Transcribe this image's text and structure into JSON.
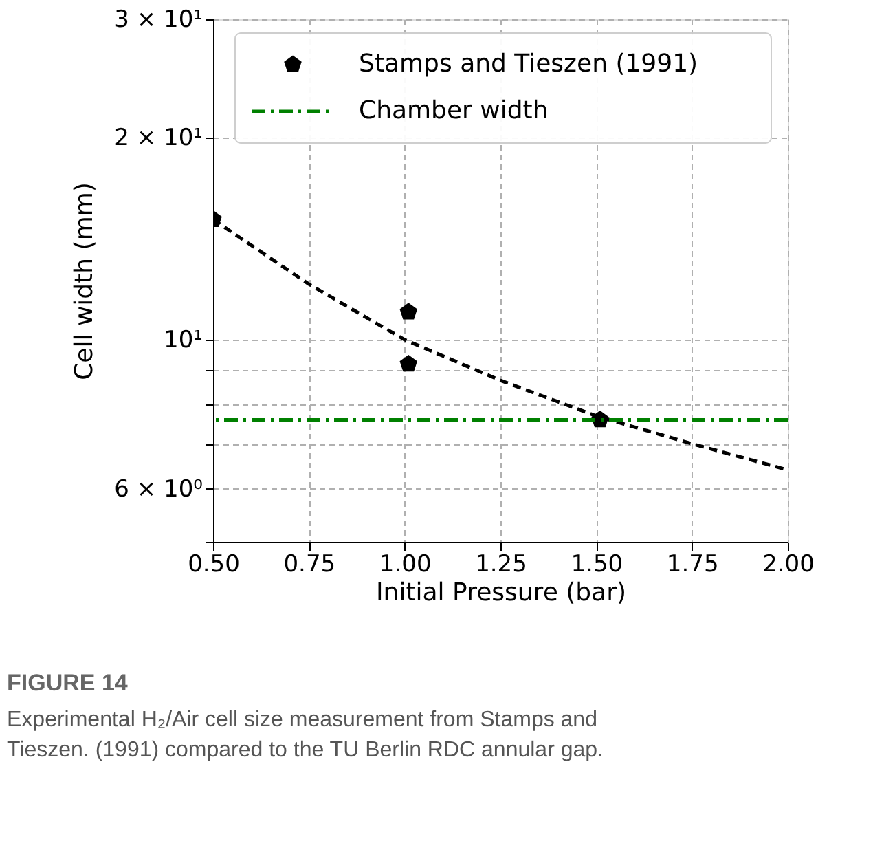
{
  "chart_data": {
    "type": "scatter",
    "xlabel": "Initial Pressure (bar)",
    "ylabel": "Cell width (mm)",
    "series": [
      {
        "name": "Stamps and Tieszen (1991)",
        "color": "#000000",
        "x": [
          0.5,
          1.01,
          1.01,
          1.51
        ],
        "values": [
          15.1,
          11.0,
          9.2,
          7.6
        ]
      },
      {
        "type": "line",
        "color": "#000000",
        "line_style": "dashed",
        "x": [
          0.5,
          0.75,
          1.0,
          1.25,
          1.5,
          1.75,
          2.0
        ],
        "values": [
          15.1,
          12.1,
          10.0,
          8.7,
          7.7,
          7.0,
          6.4
        ]
      }
    ],
    "ref_lines": [
      {
        "axis": "y",
        "value": 7.6,
        "label": "Chamber width",
        "color": "#008000",
        "line_style": "dashdot"
      }
    ],
    "log": "y",
    "xlim": [
      0.5,
      2.0
    ],
    "xticks": [
      {
        "value": 0.5,
        "label": "0.50"
      },
      0.75,
      {
        "value": 1.0,
        "label": "1.00"
      },
      1.25,
      {
        "value": 1.5,
        "label": "1.50"
      },
      1.75,
      {
        "value": 2.0,
        "label": "2.00"
      }
    ],
    "ylim": [
      5,
      30
    ],
    "yticks": [
      {
        "value": 5,
        "label": null
      },
      {
        "value": 6,
        "label": "6 × 10⁰"
      },
      {
        "value": 7,
        "label": null
      },
      {
        "value": 8,
        "label": null
      },
      {
        "value": 9,
        "label": null
      },
      {
        "value": 10,
        "label": "10¹"
      },
      {
        "value": 20,
        "label": "2 × 10¹"
      },
      {
        "value": 30,
        "label": "3 × 10¹"
      }
    ],
    "grid": true,
    "legend": "top right",
    "annotations": [
      "FIGURE 14",
      "Experimental H₂/Air cell size measurement from Stamps and Tieszen. (1991) compared to the TU Berlin RDC annular gap."
    ]
  }
}
